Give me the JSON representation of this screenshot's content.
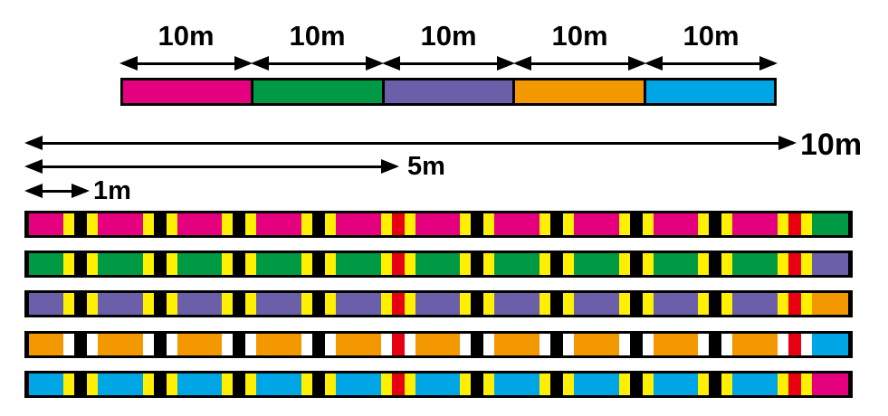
{
  "palette": {
    "pink": "#E4007F",
    "green": "#009944",
    "purple": "#6A5FA8",
    "orange": "#F39800",
    "blue": "#00A5E6",
    "yellow": "#FFF000",
    "red": "#E60012",
    "black": "#000000",
    "white": "#FFFFFF"
  },
  "top_scale": {
    "segments": [
      {
        "label": "10m",
        "color": "pink"
      },
      {
        "label": "10m",
        "color": "green"
      },
      {
        "label": "10m",
        "color": "purple"
      },
      {
        "label": "10m",
        "color": "orange"
      },
      {
        "label": "10m",
        "color": "blue"
      }
    ]
  },
  "rulers": [
    {
      "label": "10m",
      "span_m": 10
    },
    {
      "label": "5m",
      "span_m": 5
    },
    {
      "label": "1m",
      "span_m": 1
    }
  ],
  "line_bars": {
    "mark_interval_m": 1,
    "marks_per_bar": 10,
    "red_center_positions_m": [
      5,
      10
    ],
    "normal_center_color": "black",
    "special_center_color": "red",
    "bars": [
      {
        "base": "pink",
        "tick": "yellow",
        "end": "green"
      },
      {
        "base": "green",
        "tick": "yellow",
        "end": "purple"
      },
      {
        "base": "purple",
        "tick": "yellow",
        "end": "orange"
      },
      {
        "base": "orange",
        "tick": "white",
        "end": "blue"
      },
      {
        "base": "blue",
        "tick": "yellow",
        "end": "pink"
      }
    ]
  }
}
